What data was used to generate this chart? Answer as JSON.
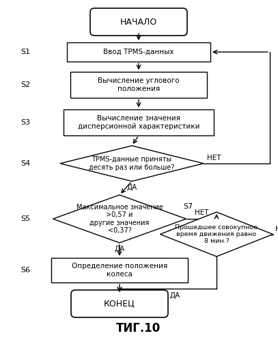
{
  "title": "ΤИГ.10",
  "bg_color": "#ffffff",
  "start_label": "НАЧАЛО",
  "end_label": "КОНЕЦ",
  "s1_label": "Ввод TPMS-данных",
  "s2_label": "Вычисление углового\nположения",
  "s3_label": "Вычисление значения\nдисперсионной характеристики",
  "s4_label": "TPMS-данные приняты\nдесять раз или больше?",
  "s5_label": "Максимальное значение\n>0,57 и\nдругие значения\n<0,37?",
  "s6_label": "Определение положения\nколеса",
  "s7_label": "Прошедшее совокупное\nвремя движения равно\n8 мин.?"
}
